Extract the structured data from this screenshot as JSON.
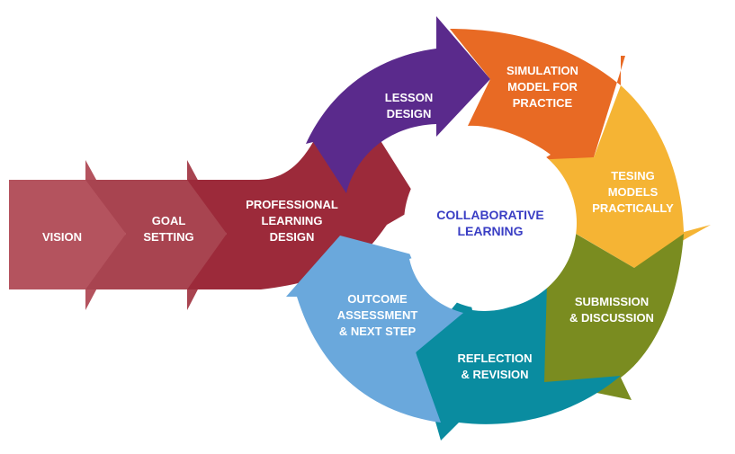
{
  "center": {
    "line1": "COLLABORATIVE",
    "line2": "LEARNING",
    "color": "#3a3ec4"
  },
  "steps": [
    {
      "lines": [
        "VISION"
      ],
      "color": "#b4535e"
    },
    {
      "lines": [
        "GOAL",
        "SETTING"
      ],
      "color": "#a84450"
    },
    {
      "lines": [
        "PROFESSIONAL",
        "LEARNING",
        "DESIGN"
      ],
      "color": "#9c2a3a"
    },
    {
      "lines": [
        "LESSON",
        "DESIGN"
      ],
      "color": "#5a2a8c"
    },
    {
      "lines": [
        "SIMULATION",
        "MODEL FOR",
        "PRACTICE"
      ],
      "color": "#e86a24"
    },
    {
      "lines": [
        "TESING",
        "MODELS",
        "PRACTICALLY"
      ],
      "color": "#f5b434"
    },
    {
      "lines": [
        "SUBMISSION",
        "& DISCUSSION"
      ],
      "color": "#7a8c20"
    },
    {
      "lines": [
        "REFLECTION",
        "& REVISION"
      ],
      "color": "#0a8ca0"
    },
    {
      "lines": [
        "OUTCOME",
        "ASSESSMENT",
        "& NEXT STEP"
      ],
      "color": "#6aa8dc"
    }
  ]
}
